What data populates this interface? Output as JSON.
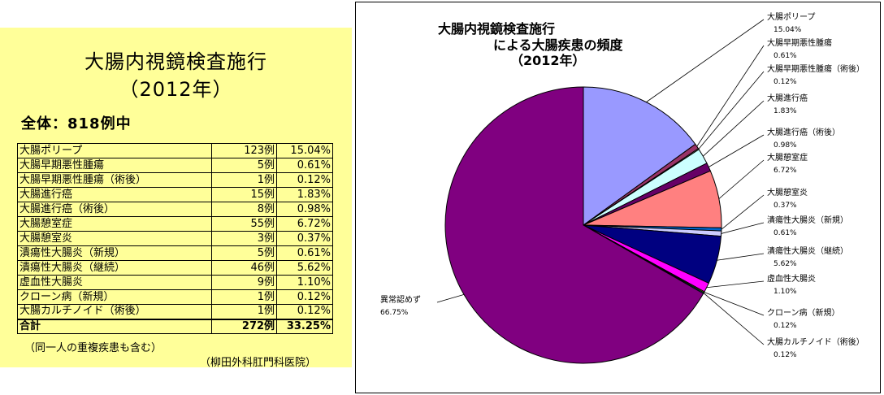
{
  "left": {
    "title_line1": "大腸内視鏡検査施行",
    "title_line2": "（2012年）",
    "total": "全体：818例中",
    "note": "（同一人の重複疾患も含む）",
    "source": "（柳田外科肛門科医院）"
  },
  "table": {
    "rows": [
      {
        "name": "大腸ポリープ",
        "count": "123例",
        "pct": "15.04%"
      },
      {
        "name": "大腸早期悪性腫瘍",
        "count": "5例",
        "pct": "0.61%"
      },
      {
        "name": "大腸早期悪性腫瘍（術後）",
        "count": "1例",
        "pct": "0.12%"
      },
      {
        "name": "大腸進行癌",
        "count": "15例",
        "pct": "1.83%"
      },
      {
        "name": "大腸進行癌（術後）",
        "count": "8例",
        "pct": "0.98%"
      },
      {
        "name": "大腸憩室症",
        "count": "55例",
        "pct": "6.72%"
      },
      {
        "name": "大腸憩室炎",
        "count": "3例",
        "pct": "0.37%"
      },
      {
        "name": "潰瘍性大腸炎（新規）",
        "count": "5例",
        "pct": "0.61%"
      },
      {
        "name": "潰瘍性大腸炎（継続）",
        "count": "46例",
        "pct": "5.62%"
      },
      {
        "name": "虚血性大腸炎",
        "count": "9例",
        "pct": "1.10%"
      },
      {
        "name": "クローン病（新規）",
        "count": "1例",
        "pct": "0.12%"
      },
      {
        "name": "大腸カルチノイド（術後）",
        "count": "1例",
        "pct": "0.12%"
      }
    ],
    "total": {
      "name": "合計",
      "count": "272例",
      "pct": "33.25%"
    }
  },
  "chart_data": {
    "type": "pie",
    "title_lines": [
      "大腸内視鏡検査施行",
      "による大腸疾患の頻度",
      "（2012年）"
    ],
    "slices": [
      {
        "label": "大腸ポリープ",
        "value": 15.04,
        "pct_text": "15.04%",
        "color": "#9999ff"
      },
      {
        "label": "大腸早期悪性腫瘍",
        "value": 0.61,
        "pct_text": "0.61%",
        "color": "#993366"
      },
      {
        "label": "大腸早期悪性腫瘍（術後）",
        "value": 0.12,
        "pct_text": "0.12%",
        "color": "#ffffcc"
      },
      {
        "label": "大腸進行癌",
        "value": 1.83,
        "pct_text": "1.83%",
        "color": "#ccffff"
      },
      {
        "label": "大腸進行癌（術後）",
        "value": 0.98,
        "pct_text": "0.98%",
        "color": "#660066"
      },
      {
        "label": "大腸憩室症",
        "value": 6.72,
        "pct_text": "6.72%",
        "color": "#ff8080"
      },
      {
        "label": "大腸憩室炎",
        "value": 0.37,
        "pct_text": "0.37%",
        "color": "#0066cc"
      },
      {
        "label": "潰瘍性大腸炎（新規）",
        "value": 0.61,
        "pct_text": "0.61%",
        "color": "#ccccff"
      },
      {
        "label": "潰瘍性大腸炎（継続）",
        "value": 5.62,
        "pct_text": "5.62%",
        "color": "#000080"
      },
      {
        "label": "虚血性大腸炎",
        "value": 1.1,
        "pct_text": "1.10%",
        "color": "#ff00ff"
      },
      {
        "label": "クローン病（新規）",
        "value": 0.12,
        "pct_text": "0.12%",
        "color": "#ffff00"
      },
      {
        "label": "大腸カルチノイド（術後）",
        "value": 0.12,
        "pct_text": "0.12%",
        "color": "#00ffff"
      },
      {
        "label": "異常認めず",
        "value": 66.75,
        "pct_text": "66.75%",
        "color": "#800080"
      }
    ]
  }
}
